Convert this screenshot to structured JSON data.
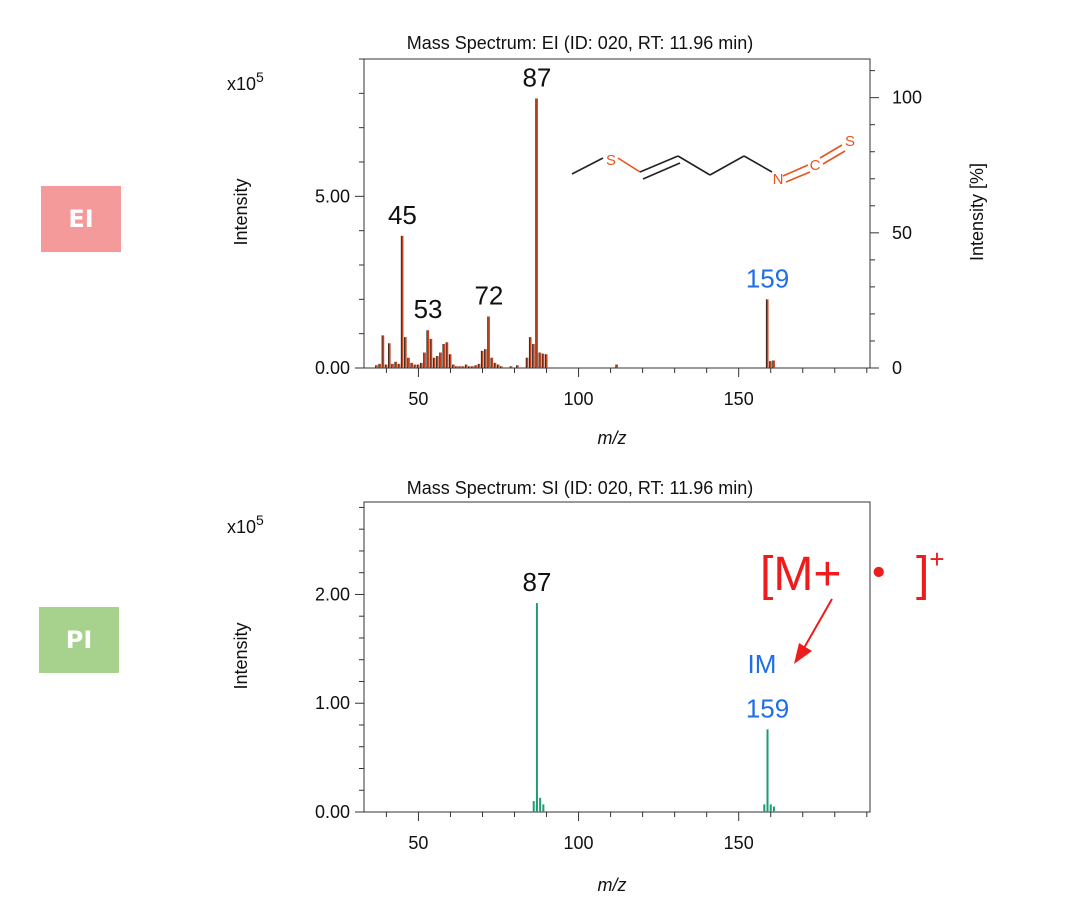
{
  "badges": {
    "ei": {
      "label": "EI",
      "color": "#f59a9a"
    },
    "pi": {
      "label": "PI",
      "color": "#a7d28d"
    }
  },
  "structure": {
    "atoms": [
      "S",
      "N",
      "C",
      "S"
    ],
    "atom_color": "#e8541c"
  },
  "annotation": {
    "text": "[M+ ・ ]",
    "superscript": "+",
    "color": "#ee1c1c",
    "ion_label": "IM"
  },
  "colors": {
    "ei_bars": "#c8451c",
    "pi_bars": "#1e9b74",
    "highlight_label": "#1f6ee8"
  },
  "chart_data": [
    {
      "type": "bar",
      "title": "Mass Spectrum: EI (ID: 020, RT: 11.96 min)",
      "xlabel": "m/z",
      "ylabel": "Intensity",
      "y2label": "Intensity [%]",
      "y_multiplier": "x10",
      "y_multiplier_exp": "5",
      "xlim": [
        33,
        191
      ],
      "ylim": [
        0,
        9.0
      ],
      "y2lim": [
        0,
        114.3
      ],
      "xticks": [
        50,
        100,
        150
      ],
      "yticks": [
        0.0,
        5.0
      ],
      "ytick_labels": [
        "0.00",
        "5.00"
      ],
      "y2ticks": [
        0,
        50,
        100
      ],
      "grid": false,
      "bar_color": "#c8451c",
      "x": [
        37,
        38,
        39,
        40,
        41,
        42,
        43,
        44,
        45,
        46,
        47,
        48,
        49,
        50,
        51,
        52,
        53,
        54,
        55,
        56,
        57,
        58,
        59,
        60,
        61,
        62,
        63,
        64,
        65,
        66,
        67,
        68,
        69,
        70,
        71,
        72,
        73,
        74,
        75,
        76,
        79,
        81,
        84,
        85,
        86,
        87,
        88,
        89,
        90,
        112,
        159,
        160,
        161
      ],
      "values": [
        0.08,
        0.12,
        0.95,
        0.1,
        0.72,
        0.12,
        0.18,
        0.12,
        3.85,
        0.9,
        0.3,
        0.15,
        0.1,
        0.1,
        0.15,
        0.45,
        1.1,
        0.85,
        0.3,
        0.35,
        0.45,
        0.7,
        0.75,
        0.4,
        0.1,
        0.05,
        0.05,
        0.05,
        0.1,
        0.05,
        0.05,
        0.08,
        0.12,
        0.5,
        0.55,
        1.5,
        0.3,
        0.15,
        0.1,
        0.05,
        0.05,
        0.08,
        0.3,
        0.9,
        0.7,
        7.85,
        0.45,
        0.42,
        0.4,
        0.1,
        2.0,
        0.2,
        0.22
      ],
      "peak_labels": [
        {
          "x": 45,
          "label": "45"
        },
        {
          "x": 53,
          "label": "53"
        },
        {
          "x": 72,
          "label": "72"
        },
        {
          "x": 87,
          "label": "87"
        },
        {
          "x": 159,
          "label": "159"
        }
      ]
    },
    {
      "type": "bar",
      "title": "Mass Spectrum: SI (ID: 020, RT: 11.96 min)",
      "xlabel": "m/z",
      "ylabel": "Intensity",
      "y_multiplier": "x10",
      "y_multiplier_exp": "5",
      "xlim": [
        33,
        191
      ],
      "ylim": [
        0,
        2.85
      ],
      "xticks": [
        50,
        100,
        150
      ],
      "yticks": [
        0.0,
        1.0,
        2.0
      ],
      "ytick_labels": [
        "0.00",
        "1.00",
        "2.00"
      ],
      "grid": false,
      "bar_color": "#1e9b74",
      "x": [
        86,
        87,
        88,
        89,
        158,
        159,
        160,
        161
      ],
      "values": [
        0.1,
        1.92,
        0.13,
        0.07,
        0.07,
        0.76,
        0.07,
        0.05
      ],
      "peak_labels": [
        {
          "x": 87,
          "label": "87"
        },
        {
          "x": 159,
          "label": "159"
        }
      ]
    }
  ]
}
